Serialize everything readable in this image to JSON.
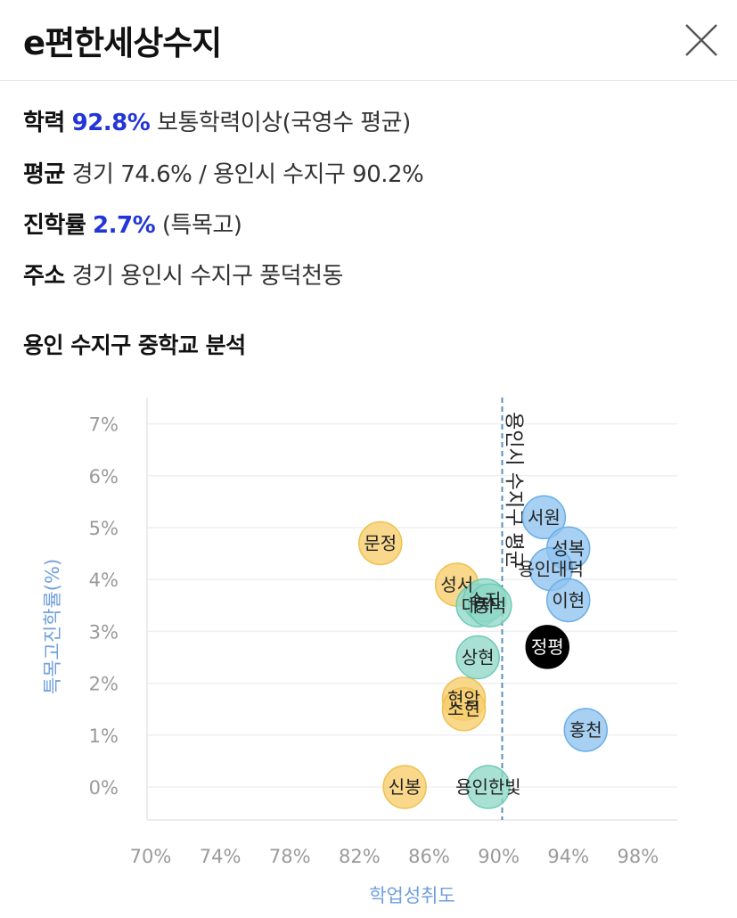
{
  "header": {
    "title": "e편한세상수지",
    "close_icon": "close-icon"
  },
  "info": {
    "academic": {
      "label": "학력",
      "value": "92.8%",
      "desc": "보통학력이상(국영수 평균)"
    },
    "average": {
      "label": "평균",
      "text": "경기 74.6% / 용인시 수지구 90.2%"
    },
    "advance": {
      "label": "진학률",
      "value": "2.7%",
      "desc": "(특목고)"
    },
    "address": {
      "label": "주소",
      "text": "경기 용인시 수지구 풍덕천동"
    }
  },
  "section_title": "용인 수지구 중학교 분석",
  "colors": {
    "highlight": "#2236d8",
    "blue": "#8ec3ef",
    "teal": "#8fd9c8",
    "yellow": "#f7cd6c",
    "selected": "#000000",
    "axis_label": "#6f9fdc"
  },
  "chart_data": {
    "type": "scatter",
    "xlabel": "학업성취도",
    "ylabel": "특목고진학률(%)",
    "xlim": [
      70,
      100
    ],
    "ylim": [
      -0.5,
      7.5
    ],
    "x_ticks": [
      "70%",
      "74%",
      "78%",
      "82%",
      "86%",
      "90%",
      "94%",
      "98%"
    ],
    "y_ticks": [
      "0%",
      "1%",
      "2%",
      "3%",
      "4%",
      "5%",
      "6%",
      "7%"
    ],
    "grid": true,
    "reference_line": {
      "x": 90.2,
      "label": "용인시 수지구 평균"
    },
    "points": [
      {
        "name": "서원",
        "x": 92.6,
        "y": 5.2,
        "group": "blue"
      },
      {
        "name": "성복",
        "x": 94.0,
        "y": 4.6,
        "group": "blue"
      },
      {
        "name": "용인대덕",
        "x": 93.0,
        "y": 4.2,
        "group": "blue"
      },
      {
        "name": "이현",
        "x": 94.0,
        "y": 3.6,
        "group": "blue"
      },
      {
        "name": "홍천",
        "x": 95.0,
        "y": 1.1,
        "group": "blue"
      },
      {
        "name": "정평",
        "x": 92.8,
        "y": 2.7,
        "group": "selected"
      },
      {
        "name": "문정",
        "x": 83.2,
        "y": 4.7,
        "group": "yellow"
      },
      {
        "name": "성서",
        "x": 87.6,
        "y": 3.9,
        "group": "yellow"
      },
      {
        "name": "현암",
        "x": 88.0,
        "y": 1.7,
        "group": "yellow"
      },
      {
        "name": "소현",
        "x": 88.0,
        "y": 1.5,
        "group": "yellow"
      },
      {
        "name": "신봉",
        "x": 84.6,
        "y": 0.0,
        "group": "yellow"
      },
      {
        "name": "대지",
        "x": 88.8,
        "y": 3.5,
        "group": "teal"
      },
      {
        "name": "수지",
        "x": 89.2,
        "y": 3.6,
        "group": "teal"
      },
      {
        "name": "풍덕",
        "x": 89.5,
        "y": 3.5,
        "group": "teal"
      },
      {
        "name": "상현",
        "x": 88.8,
        "y": 2.5,
        "group": "teal"
      },
      {
        "name": "용인한빛",
        "x": 89.4,
        "y": 0.0,
        "group": "teal"
      }
    ]
  }
}
